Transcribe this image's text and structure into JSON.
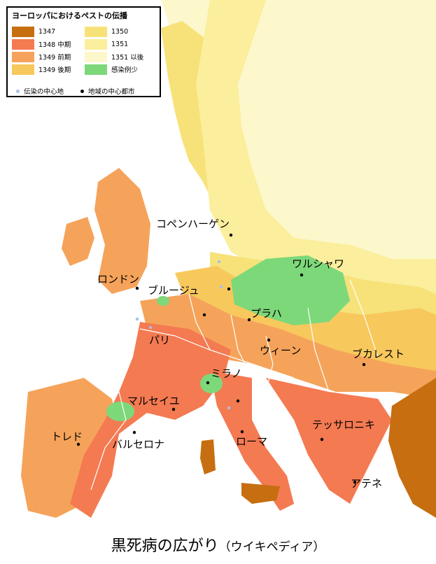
{
  "legend": {
    "title": "ヨーロッパにおけるペストの伝播",
    "items": [
      {
        "label": "1347",
        "color": "#c66e10"
      },
      {
        "label": "1348 中期",
        "color": "#f47a52"
      },
      {
        "label": "1349 前期",
        "color": "#f5a35a"
      },
      {
        "label": "1349 後期",
        "color": "#f7c85c"
      },
      {
        "label": "1350",
        "color": "#f7e27a"
      },
      {
        "label": "1351",
        "color": "#fbee9c"
      },
      {
        "label": "1351 以後",
        "color": "#fdf7cc"
      },
      {
        "label": "感染例少",
        "color": "#7dd87a"
      }
    ],
    "markers": [
      {
        "label": "伝染の中心地",
        "color": "#a6c0e8"
      },
      {
        "label": "地域の中心都市",
        "color": "#000000"
      }
    ]
  },
  "cities": {
    "copenhagen": "コペンハーゲン",
    "warsaw": "ワルシャワ",
    "london": "ロンドン",
    "bruges": "ブルージュ",
    "prague": "プラハ",
    "paris": "パリ",
    "vienna": "ウィーン",
    "bucharest": "ブカレスト",
    "milan": "ミラノ",
    "marseille": "マルセイユ",
    "toledo": "トレド",
    "barcelona": "バルセロナ",
    "rome": "ローマ",
    "thessaloniki": "テッサロニキ",
    "athens": "アテネ"
  },
  "caption": {
    "main": "黒死病の広がり",
    "sub": "（ウイキペディア）"
  }
}
